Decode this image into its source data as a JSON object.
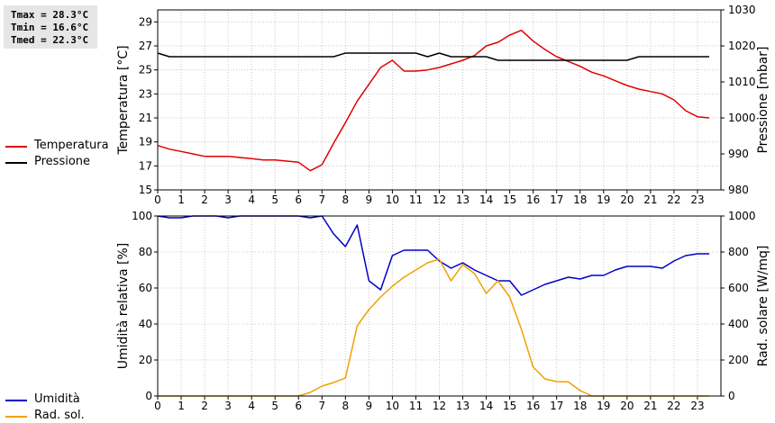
{
  "stats": [
    "Tmax = 28.3°C",
    "Tmin = 16.6°C",
    "Tmed = 22.3°C"
  ],
  "chart_data": [
    {
      "type": "line",
      "ylabel": "Temperatura [°C]",
      "y2label": "Pressione [mbar]",
      "xlim": [
        0,
        24
      ],
      "ylim": [
        15,
        30
      ],
      "y2lim": [
        980,
        1030
      ],
      "xticks": [
        "0",
        "1",
        "2",
        "3",
        "4",
        "5",
        "6",
        "7",
        "8",
        "9",
        "10",
        "11",
        "12",
        "13",
        "14",
        "15",
        "16",
        "17",
        "18",
        "19",
        "20",
        "21",
        "22",
        "23"
      ],
      "yticks": [
        "15",
        "17",
        "19",
        "21",
        "23",
        "25",
        "27",
        "29"
      ],
      "y2ticks": [
        "980",
        "990",
        "1000",
        "1010",
        "1020",
        "1030"
      ],
      "grid": true,
      "legend": "left",
      "series": [
        {
          "name": "Temperatura",
          "color": "#e00000",
          "axis": "left",
          "x": [
            0,
            0.5,
            1,
            1.5,
            2,
            2.5,
            3,
            3.5,
            4,
            4.5,
            5,
            5.5,
            6,
            6.5,
            7,
            7.5,
            8,
            8.5,
            9,
            9.5,
            10,
            10.5,
            11,
            11.5,
            12,
            12.5,
            13,
            13.5,
            14,
            14.5,
            15,
            15.5,
            16,
            16.5,
            17,
            17.5,
            18,
            18.5,
            19,
            19.5,
            20,
            20.5,
            21,
            21.5,
            22,
            22.5,
            23,
            23.5
          ],
          "y": [
            18.7,
            18.4,
            18.2,
            18.0,
            17.8,
            17.8,
            17.8,
            17.7,
            17.6,
            17.5,
            17.5,
            17.4,
            17.3,
            16.6,
            17.1,
            18.9,
            20.6,
            22.4,
            23.8,
            25.2,
            25.8,
            24.9,
            24.9,
            25.0,
            25.2,
            25.5,
            25.8,
            26.2,
            27.0,
            27.3,
            27.9,
            28.3,
            27.4,
            26.7,
            26.1,
            25.7,
            25.3,
            24.8,
            24.5,
            24.1,
            23.7,
            23.4,
            23.2,
            23.0,
            22.5,
            21.6,
            21.1,
            21.0
          ]
        },
        {
          "name": "Pressione",
          "color": "#000000",
          "axis": "right",
          "x": [
            0,
            0.5,
            1,
            1.5,
            2,
            2.5,
            3,
            3.5,
            4,
            4.5,
            5,
            5.5,
            6,
            6.5,
            7,
            7.5,
            8,
            8.5,
            9,
            9.5,
            10,
            10.5,
            11,
            11.5,
            12,
            12.5,
            13,
            13.5,
            14,
            14.5,
            15,
            15.5,
            16,
            16.5,
            17,
            17.5,
            18,
            18.5,
            19,
            19.5,
            20,
            20.5,
            21,
            21.5,
            22,
            22.5,
            23,
            23.5
          ],
          "y": [
            1018,
            1017,
            1017,
            1017,
            1017,
            1017,
            1017,
            1017,
            1017,
            1017,
            1017,
            1017,
            1017,
            1017,
            1017,
            1017,
            1018,
            1018,
            1018,
            1018,
            1018,
            1018,
            1018,
            1017,
            1018,
            1017,
            1017,
            1017,
            1017,
            1016,
            1016,
            1016,
            1016,
            1016,
            1016,
            1016,
            1016,
            1016,
            1016,
            1016,
            1016,
            1017,
            1017,
            1017,
            1017,
            1017,
            1017,
            1017
          ]
        }
      ]
    },
    {
      "type": "line",
      "ylabel": "Umidità relativa [%]",
      "y2label": "Rad. solare [W/mq]",
      "xlim": [
        0,
        24
      ],
      "ylim": [
        0,
        100
      ],
      "y2lim": [
        0,
        1000
      ],
      "xticks": [
        "0",
        "1",
        "2",
        "3",
        "4",
        "5",
        "6",
        "7",
        "8",
        "9",
        "10",
        "11",
        "12",
        "13",
        "14",
        "15",
        "16",
        "17",
        "18",
        "19",
        "20",
        "21",
        "22",
        "23"
      ],
      "yticks": [
        "0",
        "20",
        "40",
        "60",
        "80",
        "100"
      ],
      "y2ticks": [
        "0",
        "200",
        "400",
        "600",
        "800",
        "1000"
      ],
      "grid": true,
      "legend": "left",
      "series": [
        {
          "name": "Umidità",
          "color": "#0000c8",
          "axis": "left",
          "x": [
            0,
            0.5,
            1,
            1.5,
            2,
            2.5,
            3,
            3.5,
            4,
            4.5,
            5,
            5.5,
            6,
            6.5,
            7,
            7.5,
            8,
            8.5,
            9,
            9.5,
            10,
            10.5,
            11,
            11.5,
            12,
            12.5,
            13,
            13.5,
            14,
            14.5,
            15,
            15.5,
            16,
            16.5,
            17,
            17.5,
            18,
            18.5,
            19,
            19.5,
            20,
            20.5,
            21,
            21.5,
            22,
            22.5,
            23,
            23.5
          ],
          "y": [
            100,
            99,
            99,
            100,
            100,
            100,
            99,
            100,
            100,
            100,
            100,
            100,
            100,
            99,
            100,
            90,
            83,
            95,
            64,
            59,
            78,
            81,
            81,
            81,
            75,
            71,
            74,
            70,
            67,
            64,
            64,
            56,
            59,
            62,
            64,
            66,
            65,
            67,
            67,
            70,
            72,
            72,
            72,
            71,
            75,
            78,
            79,
            79
          ]
        },
        {
          "name": "Rad. sol.",
          "color": "#f0a000",
          "axis": "right",
          "x": [
            0,
            0.5,
            1,
            1.5,
            2,
            2.5,
            3,
            3.5,
            4,
            4.5,
            5,
            5.5,
            6,
            6.5,
            7,
            7.5,
            8,
            8.5,
            9,
            9.5,
            10,
            10.5,
            11,
            11.5,
            12,
            12.5,
            13,
            13.5,
            14,
            14.5,
            15,
            15.5,
            16,
            16.5,
            17,
            17.5,
            18,
            18.5,
            19,
            19.5,
            20,
            20.5,
            21,
            21.5,
            22,
            22.5,
            23,
            23.5
          ],
          "y": [
            0,
            0,
            0,
            0,
            0,
            0,
            0,
            0,
            0,
            0,
            0,
            0,
            0,
            20,
            55,
            75,
            100,
            390,
            480,
            550,
            610,
            660,
            700,
            740,
            760,
            640,
            730,
            680,
            570,
            640,
            550,
            370,
            160,
            95,
            80,
            78,
            30,
            0,
            0,
            0,
            0,
            0,
            0,
            0,
            0,
            0,
            0,
            0
          ]
        }
      ]
    }
  ]
}
